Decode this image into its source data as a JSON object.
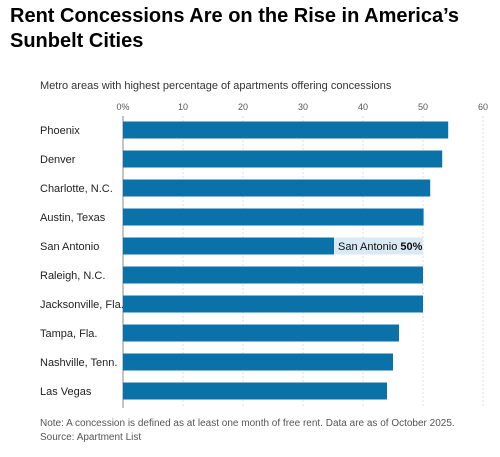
{
  "title": "Rent Concessions Are on the Rise in America’s Sunbelt Cities",
  "subtitle": "Metro areas with highest percentage of apartments offering concessions",
  "note": "Note: A concession is defined as at least one month of free rent. Data are as of October 2025.",
  "source": "Source: Apartment List",
  "colors": {
    "bar": "#0a72a9",
    "grid": "#d6d6d6",
    "axis": "#888888",
    "tooltip_bg": "#d9eaf4"
  },
  "chart_data": {
    "type": "bar",
    "orientation": "horizontal",
    "categories": [
      "Phoenix",
      "Denver",
      "Charlotte, N.C.",
      "Austin, Texas",
      "San Antonio",
      "Raleigh, N.C.",
      "Jacksonville, Fla.",
      "Tampa, Fla.",
      "Nashville, Tenn.",
      "Las Vegas"
    ],
    "values": [
      54.2,
      53.2,
      51.2,
      50.1,
      50,
      50,
      50,
      46,
      45,
      44
    ],
    "xlim": [
      0,
      60
    ],
    "xticks": [
      "0%",
      "10",
      "20",
      "30",
      "40",
      "50",
      "60"
    ],
    "tick_values": [
      0,
      10,
      20,
      30,
      40,
      50,
      60
    ],
    "grid": true,
    "annotation": {
      "category": "San Antonio",
      "label": "San Antonio",
      "value_label": "50%"
    }
  }
}
